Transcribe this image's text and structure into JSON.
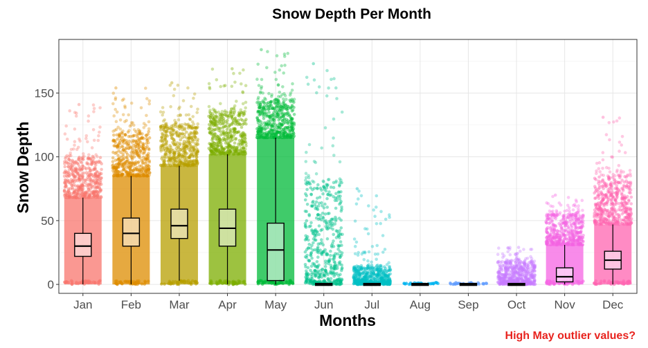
{
  "chart_data": {
    "type": "boxplot",
    "title": "Snow Depth Per Month",
    "xlabel": "Months",
    "ylabel": "Snow Depth",
    "categories": [
      "Jan",
      "Feb",
      "Mar",
      "Apr",
      "May",
      "Jun",
      "Jul",
      "Aug",
      "Sep",
      "Oct",
      "Nov",
      "Dec"
    ],
    "ylim": [
      -7,
      192
    ],
    "yticks": [
      0,
      50,
      100,
      150
    ],
    "grid": true,
    "legend": "none",
    "colors": [
      "#F8766D",
      "#DE8C00",
      "#B79F00",
      "#7CAE00",
      "#00BA38",
      "#00C08B",
      "#00BFC4",
      "#00B4F0",
      "#619CFF",
      "#C77CFF",
      "#F564E3",
      "#FF64B0"
    ],
    "boxes": [
      {
        "name": "Jan",
        "min": 0,
        "q1": 22,
        "median": 30,
        "q3": 40,
        "max": 68,
        "max_outlier": 141,
        "dense_top": 100
      },
      {
        "name": "Feb",
        "min": 0,
        "q1": 30,
        "median": 40,
        "q3": 52,
        "max": 85,
        "max_outlier": 154,
        "dense_top": 120
      },
      {
        "name": "Mar",
        "min": 3,
        "q1": 36,
        "median": 46,
        "q3": 59,
        "max": 93,
        "max_outlier": 158,
        "dense_top": 125
      },
      {
        "name": "Apr",
        "min": 0,
        "q1": 30,
        "median": 44,
        "q3": 59,
        "max": 102,
        "max_outlier": 169,
        "dense_top": 135
      },
      {
        "name": "May",
        "min": 0,
        "q1": 3,
        "median": 27,
        "q3": 48,
        "max": 115,
        "max_outlier": 184,
        "dense_top": 145
      },
      {
        "name": "Jun",
        "min": 0,
        "q1": 0,
        "median": 0,
        "q3": 0,
        "max": 0,
        "max_outlier": 173,
        "dense_top": 80
      },
      {
        "name": "Jul",
        "min": 0,
        "q1": 0,
        "median": 0,
        "q3": 0,
        "max": 0,
        "max_outlier": 75,
        "dense_top": 15
      },
      {
        "name": "Aug",
        "min": 0,
        "q1": 0,
        "median": 0,
        "q3": 0,
        "max": 0,
        "max_outlier": 0,
        "dense_top": 0
      },
      {
        "name": "Sep",
        "min": 0,
        "q1": 0,
        "median": 0,
        "q3": 0,
        "max": 0,
        "max_outlier": 0,
        "dense_top": 0
      },
      {
        "name": "Oct",
        "min": 0,
        "q1": 0,
        "median": 0,
        "q3": 0,
        "max": 0,
        "max_outlier": 29,
        "dense_top": 18
      },
      {
        "name": "Nov",
        "min": 0,
        "q1": 2,
        "median": 6,
        "q3": 13,
        "max": 31,
        "max_outlier": 70,
        "dense_top": 55
      },
      {
        "name": "Dec",
        "min": 0,
        "q1": 12,
        "median": 19,
        "q3": 26,
        "max": 47,
        "max_outlier": 131,
        "dense_top": 85
      }
    ],
    "annotation": {
      "text": "High May outlier values?",
      "color": "#E8231E",
      "position": "bottom-right"
    }
  }
}
